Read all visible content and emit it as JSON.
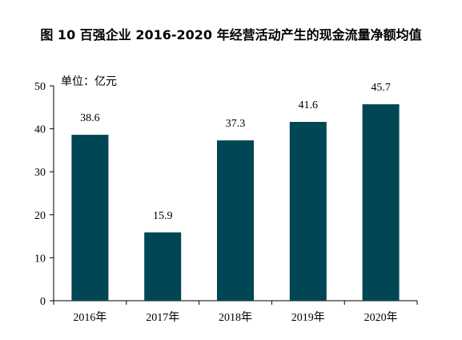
{
  "title": "图 10 百强企业 2016-2020 年经营活动产生的现金流量净额均值",
  "chart_data": {
    "type": "bar",
    "title": "图 10 百强企业 2016-2020 年经营活动产生的现金流量净额均值",
    "unit_label": "单位：亿元",
    "categories": [
      "2016年",
      "2017年",
      "2018年",
      "2019年",
      "2020年"
    ],
    "values": [
      38.6,
      15.9,
      37.3,
      41.6,
      45.7
    ],
    "value_labels": [
      "38.6",
      "15.9",
      "37.3",
      "41.6",
      "45.7"
    ],
    "y_ticks": [
      "0",
      "10",
      "20",
      "30",
      "40",
      "50"
    ],
    "ylim": [
      0,
      50
    ],
    "grid": false,
    "bar_color": "#004654"
  }
}
